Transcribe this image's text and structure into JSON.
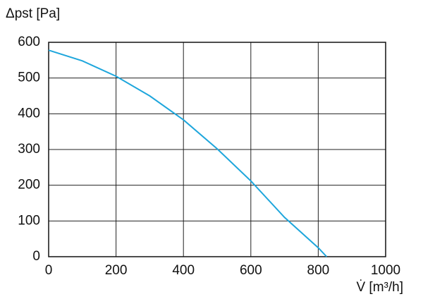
{
  "chart_data": {
    "type": "line",
    "y_label": "Δpst [Pa]",
    "x_label": "V̇ [m³/h]",
    "x": [
      0,
      100,
      200,
      300,
      400,
      500,
      600,
      700,
      800,
      825
    ],
    "series": [
      {
        "color": "#1ea6dc",
        "values": [
          578,
          548,
          505,
          450,
          383,
          302,
          212,
          110,
          25,
          0
        ]
      }
    ],
    "xlim": [
      0,
      1000
    ],
    "xticks": [
      0,
      200,
      400,
      600,
      800,
      1000
    ],
    "ylim": [
      0,
      600
    ],
    "yticks": [
      0,
      100,
      200,
      300,
      400,
      500,
      600
    ],
    "grid": true
  }
}
